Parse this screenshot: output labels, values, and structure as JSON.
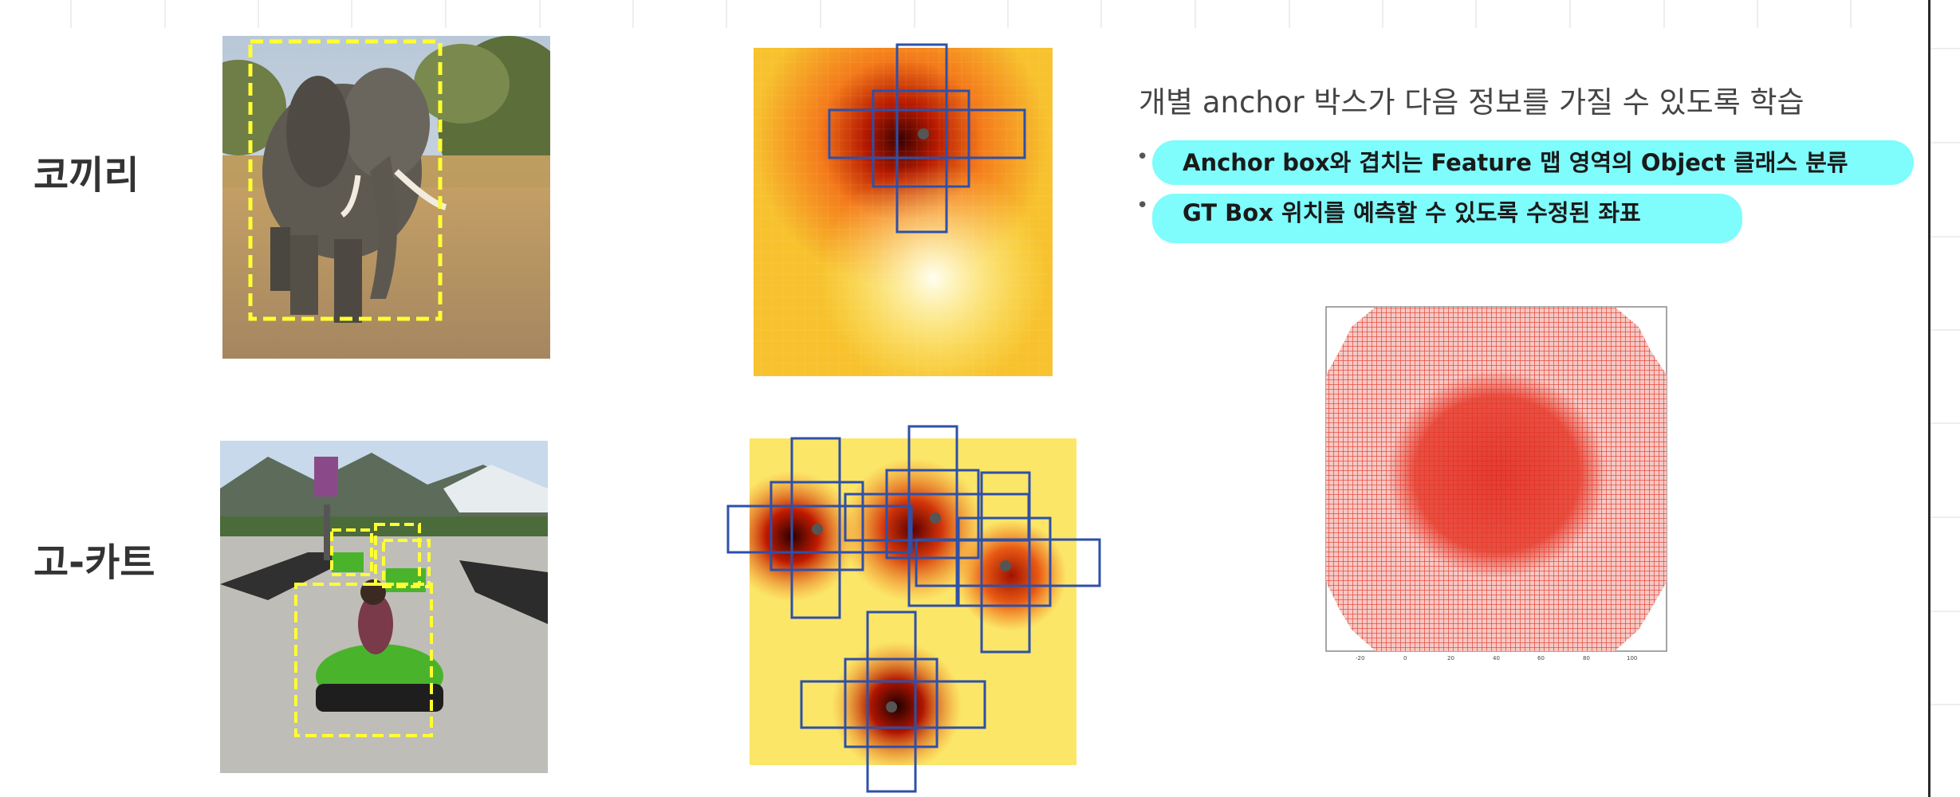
{
  "rows": [
    {
      "label": "코끼리",
      "photo_alt": "elephant"
    },
    {
      "label": "고-카트",
      "photo_alt": "go-kart"
    }
  ],
  "heading": "개별 anchor 박스가 다음 정보를 가질 수 있도록 학습",
  "bullets": [
    "Anchor box와 겹치는 Feature 맵 영역의 Object 클래스 분류",
    "GT Box 위치를 예측할 수 있도록 수정된 좌표"
  ],
  "plot_ticks": [
    "-20",
    "0",
    "20",
    "40",
    "60",
    "80",
    "100"
  ],
  "colors": {
    "highlight": "#7ffcfc",
    "gt_box": "#ffff33",
    "anchor_box": "#2e50a8",
    "anchor_grid": "#e02020"
  },
  "icons": [
    "elephant-photo",
    "go-kart-photo",
    "feature-heatmap",
    "anchor-grid-plot"
  ]
}
